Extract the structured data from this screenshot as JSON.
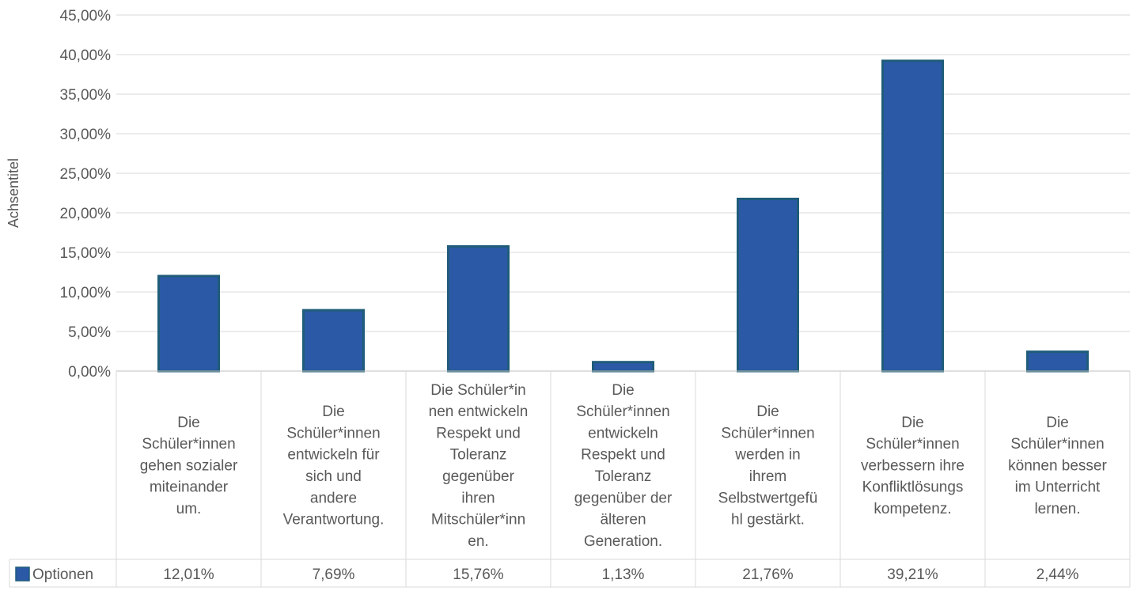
{
  "chart_data": {
    "type": "bar",
    "ylabel": "Achsentitel",
    "ylim": [
      0,
      45
    ],
    "y_ticks": [
      "0,00%",
      "5,00%",
      "10,00%",
      "15,00%",
      "20,00%",
      "25,00%",
      "30,00%",
      "35,00%",
      "40,00%",
      "45,00%"
    ],
    "categories": [
      "Die Schüler*innen gehen sozialer miteinander um.",
      "Die Schüler*innen entwickeln für sich und andere Verantwortung.",
      "Die Schüler*innen entwickeln Respekt und Toleranz gegenüber ihren Mitschüler*innen.",
      "Die Schüler*innen entwickeln Respekt und Toleranz gegenüber der älteren Generation.",
      "Die Schüler*innen werden in ihrem Selbstwertgefühl gestärkt.",
      "Die Schüler*innen verbessern ihre Konfliktlösungskompetenz.",
      "Die Schüler*innen können besser im Unterricht lernen."
    ],
    "category_lines": [
      [
        "Die",
        "Schüler*innen",
        "gehen sozialer",
        "miteinander",
        "um."
      ],
      [
        "Die",
        "Schüler*innen",
        "entwickeln für",
        "sich und",
        "andere",
        "Verantwortung."
      ],
      [
        "Die Schüler*in",
        "nen entwickeln",
        "Respekt und",
        "Toleranz",
        "gegenüber",
        "ihren",
        "Mitschüler*inn",
        "en."
      ],
      [
        "Die",
        "Schüler*innen",
        "entwickeln",
        "Respekt und",
        "Toleranz",
        "gegenüber der",
        "älteren",
        "Generation."
      ],
      [
        "Die",
        "Schüler*innen",
        "werden in",
        "ihrem",
        "Selbstwertgefü",
        "hl gestärkt."
      ],
      [
        "Die",
        "Schüler*innen",
        "verbessern ihre",
        "Konfliktlösungs",
        "kompetenz."
      ],
      [
        "Die",
        "Schüler*innen",
        "können besser",
        "im Unterricht",
        "lernen."
      ]
    ],
    "series": [
      {
        "name": "Optionen",
        "color": "#2b59a6",
        "border_color": "#1f5c7a",
        "values": [
          12.01,
          7.69,
          15.76,
          1.13,
          21.76,
          39.21,
          2.44
        ],
        "labels": [
          "12,01%",
          "7,69%",
          "15,76%",
          "1,13%",
          "21,76%",
          "39,21%",
          "2,44%"
        ]
      }
    ],
    "data_table": true,
    "legend": "data-table-left",
    "grid": true
  }
}
